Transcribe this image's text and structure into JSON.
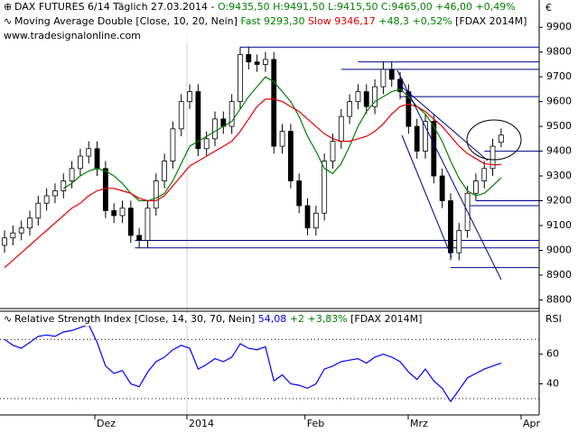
{
  "header": {
    "title": "DAX FUTURES 6/14 Täglich",
    "date": "27.03.2014 -",
    "quote": "O:9435,50 H:9491,50 L:9415,50 C:9465,00 +46,00 +0,49%",
    "ma_label": "Moving Average Double [Close, 10, 20, Nein]",
    "ma_fast": "Fast 9293,30",
    "ma_slow": "Slow 9346,17",
    "ma_change": "+48,3 +0,52%",
    "ma_symbol": "[FDAX 2014M]",
    "website": "www.tradesignalonline.com",
    "currency": "€"
  },
  "chart_data": [
    {
      "type": "candlestick",
      "xlim": [
        -0.54,
        63.52
      ],
      "ylim": [
        8765,
        10010
      ],
      "yticks": [
        8800,
        8900,
        9000,
        9100,
        9200,
        9300,
        9400,
        9500,
        9600,
        9700,
        9800,
        9900
      ],
      "xticks": [
        {
          "value": 10.73,
          "label": "Dez"
        },
        {
          "value": 21.67,
          "label": "2014"
        },
        {
          "value": 35.7,
          "label": "Feb"
        },
        {
          "value": 47.96,
          "label": "Mrz"
        },
        {
          "value": 61.37,
          "label": "Apr"
        }
      ],
      "up_color": "#ffffff",
      "down_color": "#000000",
      "open": [
        9020,
        9050,
        9070,
        9090,
        9130,
        9190,
        9220,
        9240,
        9280,
        9330,
        9380,
        9410,
        9330,
        9160,
        9140,
        9170,
        9060,
        9040,
        9170,
        9280,
        9360,
        9490,
        9600,
        9640,
        9410,
        9450,
        9530,
        9500,
        9600,
        9790,
        9760,
        9750,
        9770,
        9420,
        9480,
        9280,
        9180,
        9090,
        9150,
        9360,
        9440,
        9540,
        9600,
        9640,
        9580,
        9660,
        9730,
        9690,
        9640,
        9500,
        9400,
        9520,
        9300,
        9200,
        8990,
        9080,
        9230,
        9280,
        9330,
        9435.5
      ],
      "high": [
        9080,
        9100,
        9120,
        9160,
        9220,
        9250,
        9270,
        9310,
        9360,
        9410,
        9440,
        9440,
        9360,
        9190,
        9200,
        9200,
        9090,
        9200,
        9310,
        9390,
        9520,
        9630,
        9670,
        9670,
        9480,
        9560,
        9560,
        9630,
        9820,
        9820,
        9790,
        9800,
        9800,
        9510,
        9510,
        9310,
        9210,
        9180,
        9390,
        9470,
        9570,
        9630,
        9670,
        9670,
        9690,
        9760,
        9760,
        9720,
        9670,
        9530,
        9550,
        9550,
        9330,
        9230,
        9110,
        9260,
        9310,
        9360,
        9450,
        9491.5
      ],
      "low": [
        8990,
        9020,
        9040,
        9060,
        9100,
        9160,
        9190,
        9210,
        9250,
        9300,
        9350,
        9300,
        9130,
        9110,
        9110,
        9030,
        9010,
        9010,
        9140,
        9250,
        9330,
        9460,
        9570,
        9380,
        9380,
        9420,
        9470,
        9470,
        9570,
        9730,
        9720,
        9720,
        9390,
        9390,
        9250,
        9150,
        9060,
        9060,
        9120,
        9330,
        9410,
        9510,
        9570,
        9550,
        9550,
        9630,
        9660,
        9610,
        9470,
        9370,
        9370,
        9270,
        9170,
        8960,
        8960,
        9050,
        9200,
        9250,
        9300,
        9415.5
      ],
      "close": [
        9050,
        9070,
        9090,
        9130,
        9190,
        9220,
        9240,
        9280,
        9330,
        9380,
        9410,
        9330,
        9160,
        9140,
        9170,
        9060,
        9040,
        9170,
        9280,
        9360,
        9490,
        9600,
        9640,
        9410,
        9450,
        9530,
        9500,
        9600,
        9790,
        9760,
        9750,
        9770,
        9420,
        9480,
        9280,
        9180,
        9090,
        9150,
        9360,
        9440,
        9540,
        9600,
        9640,
        9580,
        9660,
        9730,
        9690,
        9640,
        9500,
        9400,
        9520,
        9300,
        9200,
        8990,
        9080,
        9230,
        9280,
        9330,
        9420,
        9465
      ],
      "series": [
        {
          "color": "#008000",
          "values": [
            null,
            null,
            null,
            null,
            null,
            null,
            null,
            9250,
            9270,
            9300,
            9320,
            9330,
            9320,
            9300,
            9270,
            9230,
            9200,
            9200,
            9210,
            9230,
            9280,
            9350,
            9420,
            9440,
            9460,
            9480,
            9500,
            9520,
            9570,
            9620,
            9660,
            9700,
            9680,
            9640,
            9600,
            9540,
            9460,
            9400,
            9330,
            9310,
            9350,
            9420,
            9500,
            9560,
            9600,
            9620,
            9640,
            9650,
            9620,
            9580,
            9550,
            9500,
            9440,
            9360,
            9290,
            9240,
            9220,
            9230,
            9260,
            9293.3
          ]
        },
        {
          "color": "#e00000",
          "values": [
            8930,
            8960,
            8990,
            9020,
            9050,
            9080,
            9110,
            9140,
            9170,
            9190,
            9220,
            9240,
            9250,
            9250,
            9240,
            9230,
            9210,
            9200,
            9200,
            9220,
            9260,
            9300,
            9340,
            9360,
            9380,
            9400,
            9420,
            9440,
            9480,
            9530,
            9580,
            9610,
            9610,
            9600,
            9580,
            9560,
            9530,
            9500,
            9470,
            9450,
            9440,
            9440,
            9450,
            9460,
            9480,
            9510,
            9550,
            9580,
            9590,
            9580,
            9560,
            9530,
            9500,
            9460,
            9420,
            9390,
            9370,
            9350,
            9345,
            9346.17
          ]
        }
      ],
      "hlines_color": "#00008b",
      "hlines": [
        {
          "value": 9820,
          "start": 28
        },
        {
          "value": 9760,
          "start": 42
        },
        {
          "value": 9730,
          "start": 40
        },
        {
          "value": 9620,
          "start": 47
        },
        {
          "value": 9400,
          "start": 57
        },
        {
          "value": 9200,
          "start": 56
        },
        {
          "value": 9180,
          "start": 55
        },
        {
          "value": 9040,
          "start": 15.5
        },
        {
          "value": 9010,
          "start": 15.5
        },
        {
          "value": 8930,
          "start": 53
        }
      ]
    },
    {
      "type": "line",
      "title": "Relative Strength Index [Close, 14, 30, 70, Nein]",
      "last": "54,08",
      "change": "+2 +3,83%",
      "symbol": "[FDAX 2014M]",
      "axis_label": "RSI",
      "xlim": [
        -0.54,
        63.52
      ],
      "ylim": [
        19,
        89
      ],
      "yticks": [
        40,
        60
      ],
      "levels": [
        30,
        70
      ],
      "series": [
        {
          "color": "#0000ff",
          "values": [
            70,
            66,
            64,
            68,
            72,
            73,
            72,
            75,
            76,
            78,
            80,
            68,
            52,
            47,
            49,
            40,
            38,
            48,
            55,
            58,
            63,
            66,
            64,
            50,
            53,
            57,
            55,
            58,
            67,
            64,
            63,
            65,
            42,
            46,
            40,
            39,
            37,
            40,
            50,
            52,
            55,
            56,
            57,
            54,
            58,
            60,
            58,
            55,
            48,
            43,
            50,
            42,
            37,
            28,
            36,
            44,
            47,
            50,
            52,
            54.08
          ]
        }
      ]
    }
  ]
}
